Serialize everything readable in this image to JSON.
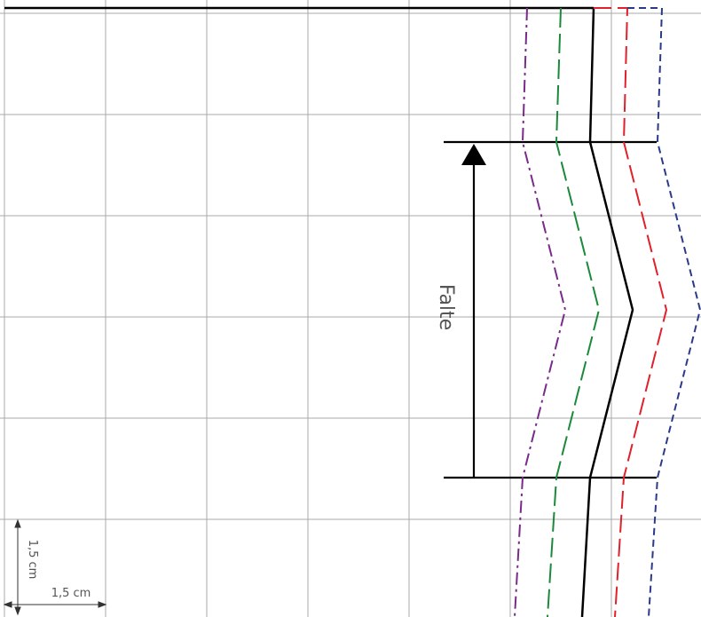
{
  "diagram": {
    "fold_label": "Falte",
    "scale_vertical_label": "1,5 cm",
    "scale_horizontal_label": "1,5 cm"
  },
  "colors": {
    "grid": "#a8a8a8",
    "main_line": "#000000",
    "green_line": "#1a8a3a",
    "purple_line": "#7a2a8a",
    "red_line": "#e0202a",
    "blue_line": "#2a3a8a",
    "text": "#555555"
  }
}
